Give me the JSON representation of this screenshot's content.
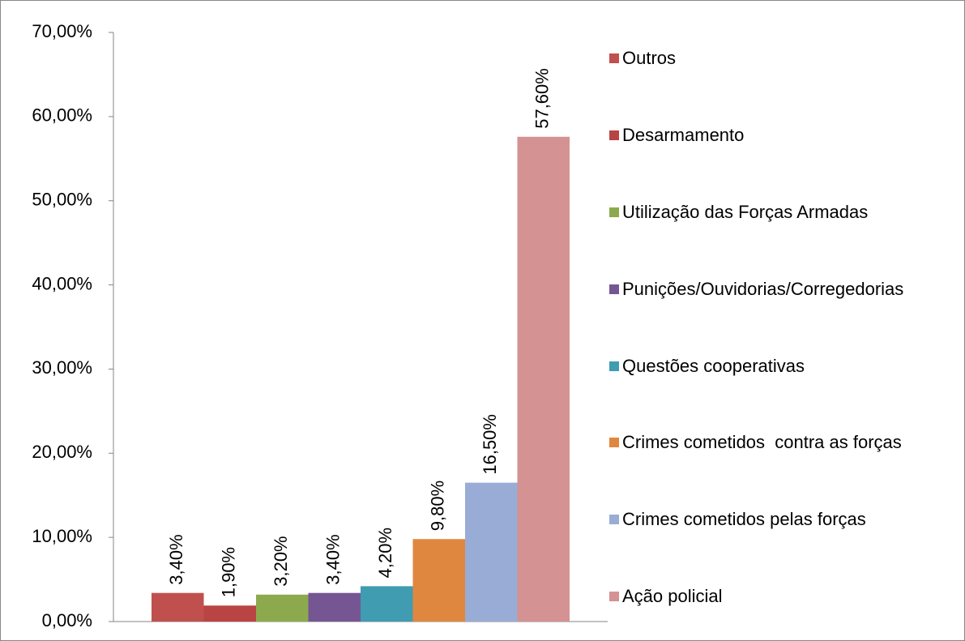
{
  "chart_data": {
    "type": "bar",
    "series": [
      {
        "name": "Outros",
        "color": "#c0504d",
        "values": [
          3.4
        ],
        "value_labels": [
          "3,40%"
        ]
      },
      {
        "name": "Desarmamento",
        "color": "#b94444",
        "values": [
          1.9
        ],
        "value_labels": [
          "1,90%"
        ]
      },
      {
        "name": "Utilização das Forças Armadas",
        "color": "#8caa4d",
        "values": [
          3.2
        ],
        "value_labels": [
          "3,20%"
        ]
      },
      {
        "name": "Punições/Ouvidorias/Corregedorias",
        "color": "#755693",
        "values": [
          3.4
        ],
        "value_labels": [
          "3,40%"
        ]
      },
      {
        "name": "Questões cooperativas",
        "color": "#3f9cb1",
        "values": [
          4.2
        ],
        "value_labels": [
          "4,20%"
        ]
      },
      {
        "name": "Crimes cometidos  contra as forças",
        "color": "#e0873f",
        "values": [
          9.8
        ],
        "value_labels": [
          "9,80%"
        ]
      },
      {
        "name": "Crimes cometidos pelas forças",
        "color": "#99acd5",
        "values": [
          16.5
        ],
        "value_labels": [
          "16,50%"
        ]
      },
      {
        "name": "Ação policial",
        "color": "#d49292",
        "values": [
          57.6
        ],
        "value_labels": [
          "57,60%"
        ]
      }
    ],
    "ylim": [
      0,
      70
    ],
    "yticks": [
      {
        "value": 0,
        "label": "0,00%"
      },
      {
        "value": 10,
        "label": "10,00%"
      },
      {
        "value": 20,
        "label": "20,00%"
      },
      {
        "value": 30,
        "label": "30,00%"
      },
      {
        "value": 40,
        "label": "40,00%"
      },
      {
        "value": 50,
        "label": "50,00%"
      },
      {
        "value": 60,
        "label": "60,00%"
      },
      {
        "value": 70,
        "label": "70,00%"
      }
    ],
    "grid": false,
    "legend": "right"
  }
}
